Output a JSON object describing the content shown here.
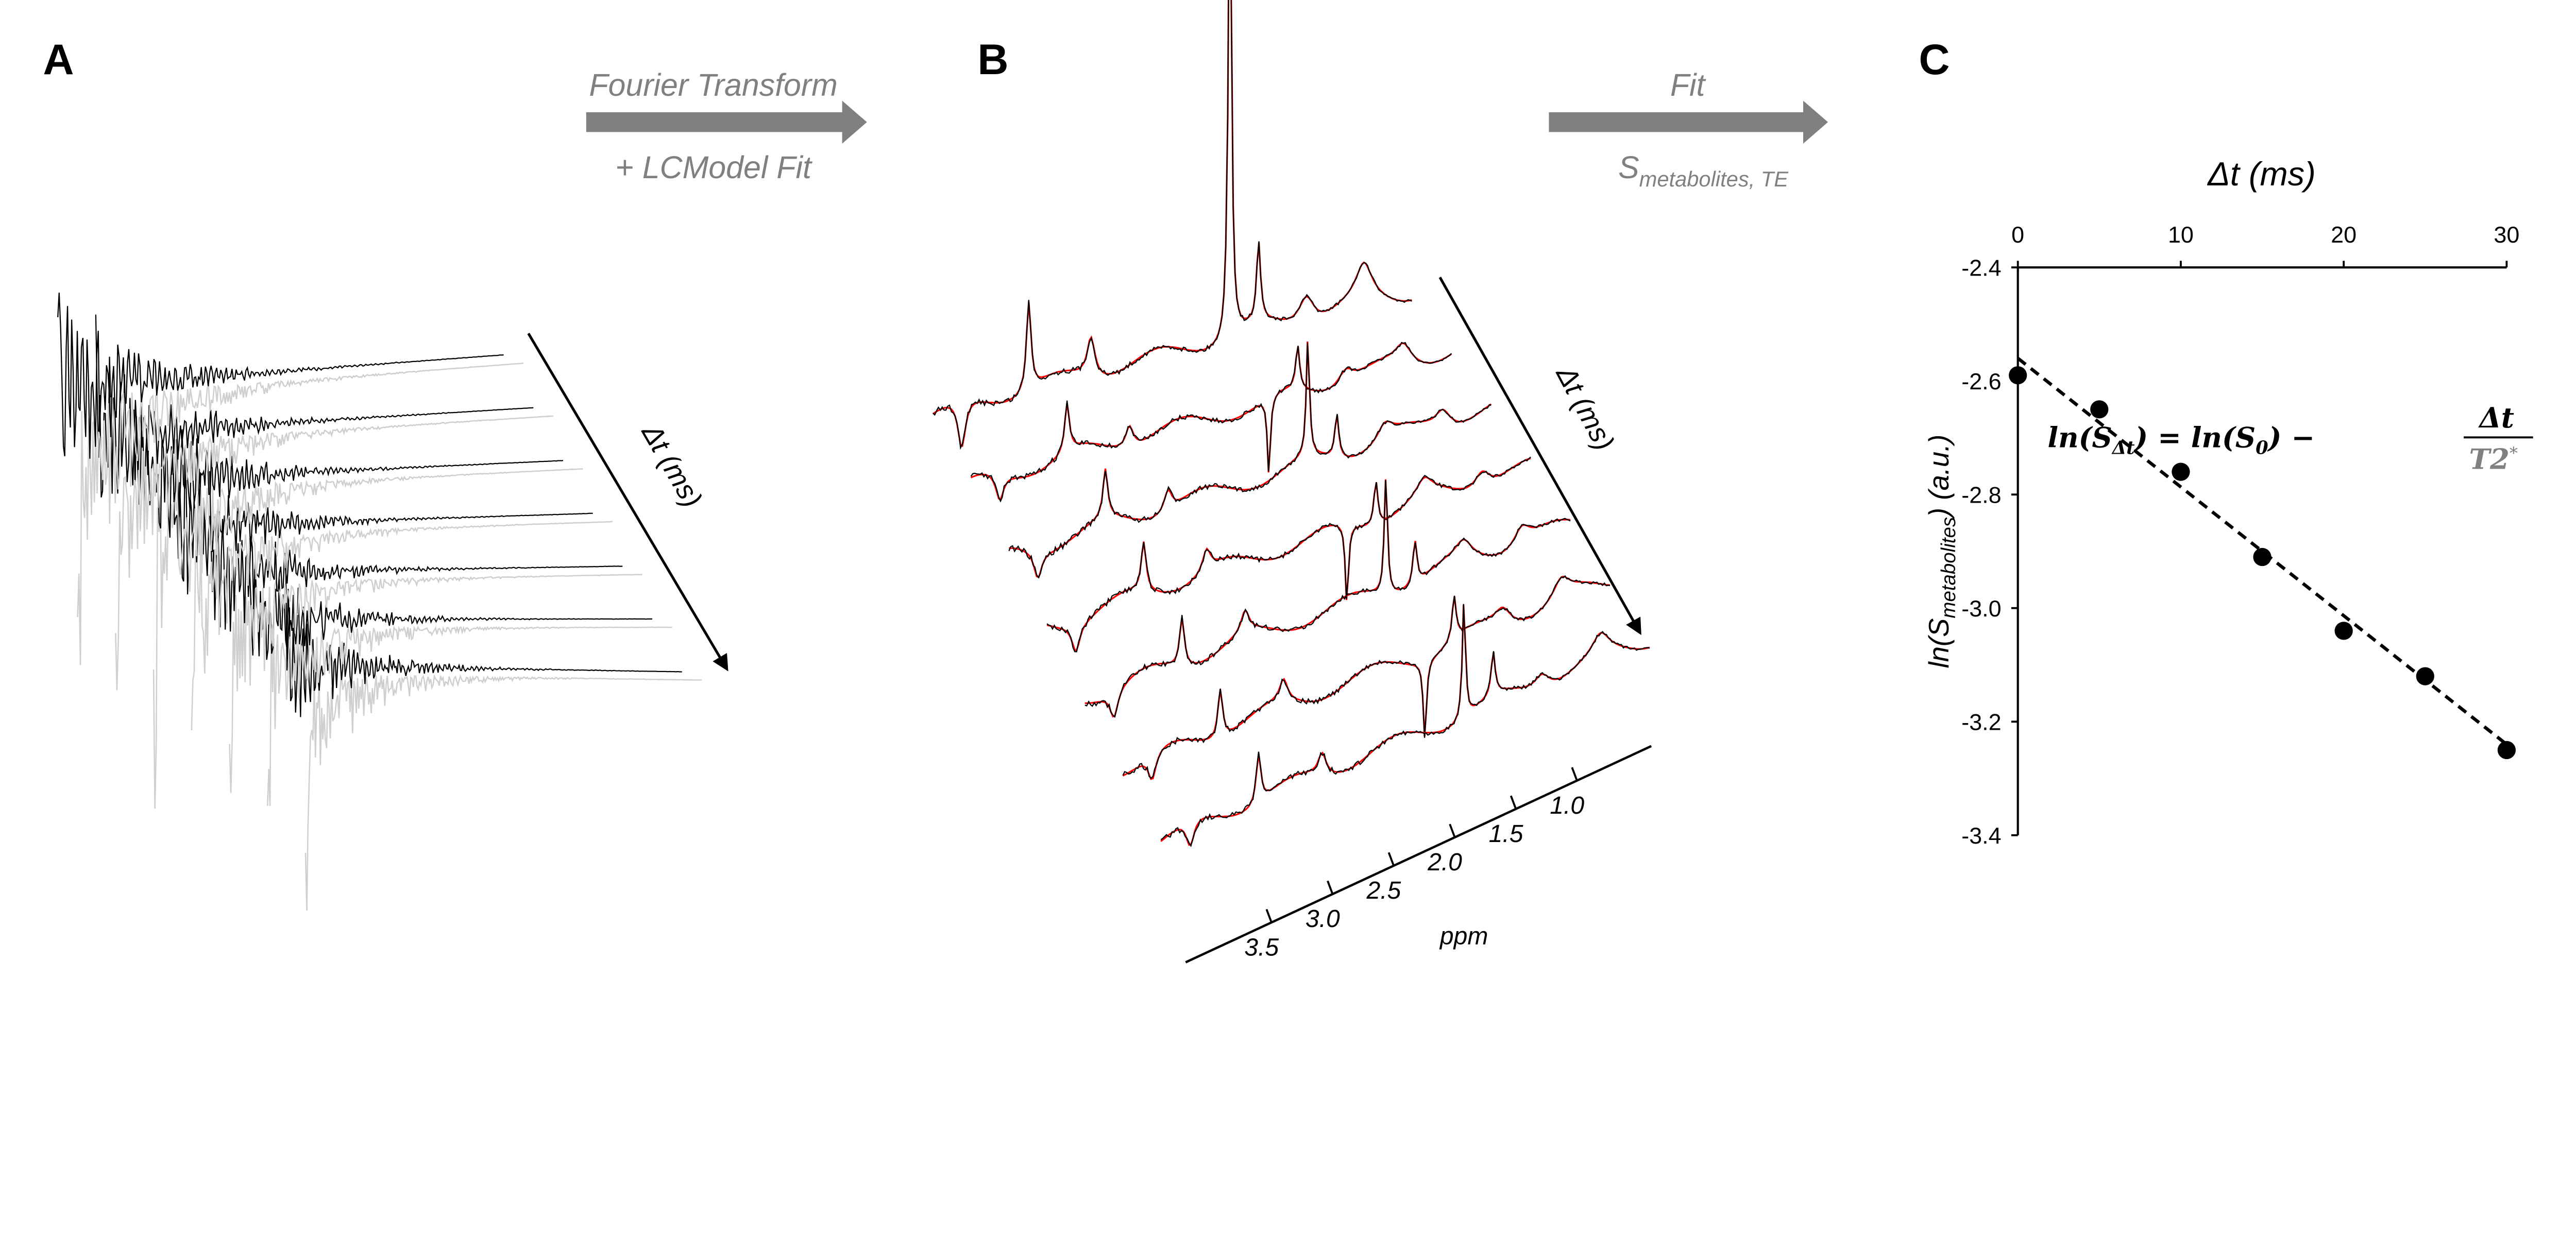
{
  "panels": {
    "a": "A",
    "b": "B",
    "c": "C"
  },
  "arrow1": {
    "top": "Fourier Transform",
    "bottom": "+ LCModel Fit"
  },
  "arrow2": {
    "top": "Fit",
    "bottom_main": "S",
    "bottom_sub": "metabolites, TE"
  },
  "panel_a": {
    "axis_label": "Δt (ms)",
    "trace_count": 7
  },
  "panel_b": {
    "axis_label": "Δt (ms)",
    "ppm_label": "ppm",
    "ppm_ticks": [
      "3.5",
      "3.0",
      "2.5",
      "2.0",
      "1.5",
      "1.0"
    ],
    "spectrum_count": 7,
    "colors": {
      "data": "#000000",
      "fit": "#ff0000"
    }
  },
  "equation": {
    "lhs": "ln(S",
    "lhs_sub": "Δt",
    "mid": ") = ln(S",
    "mid_sub": "0",
    "end": ") −",
    "num": "Δt",
    "den": "T2",
    "den_sup": "*"
  },
  "chart_data": {
    "type": "scatter",
    "title": "",
    "xlabel": "Δt (ms)",
    "ylabel_main": "ln(S",
    "ylabel_sub": "metabolites",
    "ylabel_end": ") (a.u.)",
    "xlim": [
      0,
      30
    ],
    "ylim": [
      -3.4,
      -2.4
    ],
    "xticks": [
      "0",
      "10",
      "20",
      "30"
    ],
    "xtick_values": [
      0,
      10,
      20,
      30
    ],
    "yticks": [
      "-2.4",
      "-2.6",
      "-2.8",
      "-3.0",
      "-3.2",
      "-3.4"
    ],
    "ytick_values": [
      -2.4,
      -2.6,
      -2.8,
      -3.0,
      -3.2,
      -3.4
    ],
    "x": [
      0,
      5,
      10,
      15,
      20,
      25,
      30
    ],
    "y": [
      -2.59,
      -2.65,
      -2.76,
      -2.91,
      -3.04,
      -3.12,
      -3.25
    ],
    "fit_line": {
      "x": [
        0,
        30
      ],
      "y": [
        -2.56,
        -3.24
      ],
      "style": "dashed"
    },
    "x_axis_position": "top"
  }
}
